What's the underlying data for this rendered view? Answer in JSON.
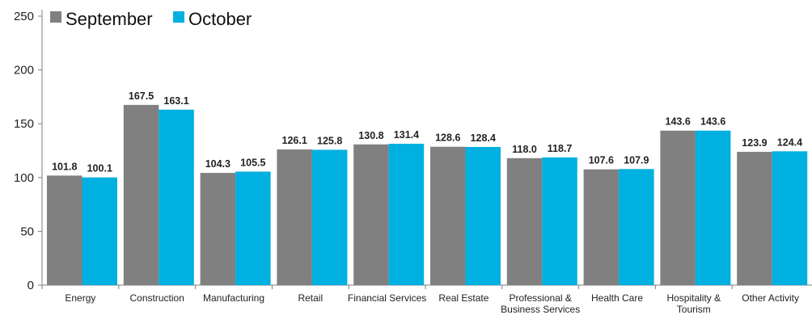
{
  "chart_data": {
    "type": "bar",
    "title": "",
    "xlabel": "",
    "ylabel": "",
    "ylim": [
      0,
      250
    ],
    "yticks": [
      0,
      50,
      100,
      150,
      200,
      250
    ],
    "grid": false,
    "legend_position": "top-left",
    "categories": [
      [
        "Energy"
      ],
      [
        "Construction"
      ],
      [
        "Manufacturing"
      ],
      [
        "Retail"
      ],
      [
        "Financial Services"
      ],
      [
        "Real Estate"
      ],
      [
        "Professional &",
        "Business Services"
      ],
      [
        "Health Care"
      ],
      [
        "Hospitality &",
        "Tourism"
      ],
      [
        "Other Activity"
      ]
    ],
    "series": [
      {
        "name": "September",
        "color": "#808080",
        "values": [
          101.8,
          167.5,
          104.3,
          126.1,
          130.8,
          128.6,
          118.0,
          107.6,
          143.6,
          123.9
        ],
        "labels": [
          "101.8",
          "167.5",
          "104.3",
          "126.1",
          "130.8",
          "128.6",
          "118.0",
          "107.6",
          "143.6",
          "123.9"
        ]
      },
      {
        "name": "October",
        "color": "#00b0e0",
        "values": [
          100.1,
          163.1,
          105.5,
          125.8,
          131.4,
          128.4,
          118.7,
          107.9,
          143.6,
          124.4
        ],
        "labels": [
          "100.1",
          "163.1",
          "105.5",
          "125.8",
          "131.4",
          "128.4",
          "118.7",
          "107.9",
          "143.6",
          "124.4"
        ]
      }
    ]
  }
}
